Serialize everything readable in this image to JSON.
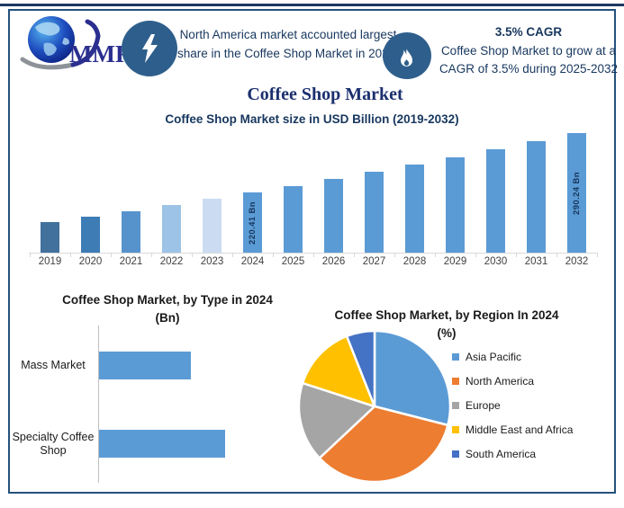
{
  "header": {
    "logo": {
      "text": "MMR",
      "icon": "globe-swoosh-icon"
    },
    "highlight_icon": "lightning-icon",
    "highlight_text": "North America market accounted largest share in the Coffee Shop Market in 2024.",
    "cagr_icon": "flame-icon",
    "cagr_title": "3.5% CAGR",
    "cagr_text": "Coffee Shop Market to grow at a CAGR of 3.5% during 2025-2032"
  },
  "main_title": "Coffee Shop Market",
  "colors": {
    "top_bar": "#203864",
    "card_border": "#24527C",
    "icon_circle": "#2E5F8C",
    "navy_text": "#17375E",
    "main_title_navy": "#1B2F6E",
    "bar_blue": "#5B9BD5",
    "axis_gray": "#D9D9D9"
  },
  "chart_data": [
    {
      "id": "market_size",
      "type": "bar",
      "title": "Coffee Shop Market size in USD Billion (2019-2032)",
      "categories": [
        "2019",
        "2020",
        "2021",
        "2022",
        "2023",
        "2024",
        "2025",
        "2026",
        "2027",
        "2028",
        "2029",
        "2030",
        "2031",
        "2032"
      ],
      "values": [
        185.6,
        192.1,
        198.8,
        205.7,
        212.9,
        220.41,
        228.1,
        236.1,
        244.4,
        252.9,
        261.8,
        270.9,
        280.4,
        290.24
      ],
      "estimated": "2019-2023 and 2025-2031 estimated from bar heights; labeled values are exact",
      "unit": "USD Bn",
      "ylim": [
        150,
        300
      ],
      "grid": false,
      "data_labels": [
        {
          "category": "2024",
          "label": "220.41 Bn"
        },
        {
          "category": "2032",
          "label": "290.24 Bn"
        }
      ],
      "bar_colors": [
        "#41719C",
        "#3E7CB6",
        "#5693CC",
        "#9DC3E6",
        "#CBDCF2",
        "#5B9BD5",
        "#5B9BD5",
        "#5B9BD5",
        "#5B9BD5",
        "#5B9BD5",
        "#5B9BD5",
        "#5B9BD5",
        "#5B9BD5",
        "#5B9BD5"
      ]
    },
    {
      "id": "by_type",
      "type": "bar",
      "orientation": "horizontal",
      "title_line1": "Coffee Shop Market, by Type in 2024",
      "title_line2": "(Bn)",
      "categories": [
        "Mass Market",
        "Specialty Coffee Shop"
      ],
      "values": [
        93,
        127
      ],
      "estimated": "no data labels shown; values estimated from bar lengths",
      "bar_color": "#5B9BD5",
      "grid": false
    },
    {
      "id": "by_region",
      "type": "pie",
      "title_line1": "Coffee Shop Market, by Region In 2024",
      "title_line2": "(%)",
      "labels": [
        "Asia Pacific",
        "North America",
        "Europe",
        "Middle East and Africa",
        "South America"
      ],
      "values": [
        29,
        34,
        17,
        14,
        6
      ],
      "estimated": "slice percentages estimated from slice angles",
      "colors": [
        "#5B9BD5",
        "#ED7D31",
        "#A5A5A5",
        "#FFC000",
        "#4472C4"
      ],
      "legend_position": "right"
    }
  ]
}
